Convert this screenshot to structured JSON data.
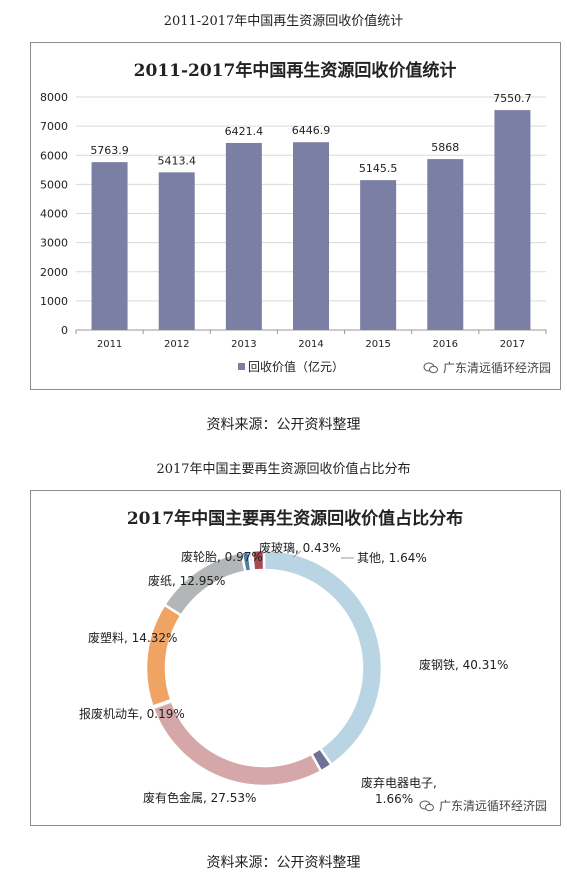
{
  "chart1_caption": "2011-2017年中国再生资源回收价值统计",
  "chart1_source": "资料来源：公开资料整理",
  "chart2_caption": "2017年中国主要再生资源回收价值占比分布",
  "chart2_source": "资料来源：公开资料整理",
  "watermark_text": "广东清远循环经济园",
  "chart_data": [
    {
      "type": "bar",
      "title": "2011-2017年中国再生资源回收价值统计",
      "categories": [
        "2011",
        "2012",
        "2013",
        "2014",
        "2015",
        "2016",
        "2017"
      ],
      "series": [
        {
          "name": "回收价值（亿元）",
          "values": [
            5763.9,
            5413.4,
            6421.4,
            6446.9,
            5145.5,
            5868,
            7550.7
          ]
        }
      ],
      "data_labels": [
        "5763.9",
        "5413.4",
        "6421.4",
        "6446.9",
        "5145.5",
        "5868",
        "7550.7"
      ],
      "ylim": [
        0,
        8000
      ],
      "yticks": [
        "0",
        "1000",
        "2000",
        "3000",
        "4000",
        "5000",
        "6000",
        "7000",
        "8000"
      ],
      "grid": true,
      "legend": "bottom",
      "color": "#7b7fa3"
    },
    {
      "type": "pie",
      "title": "2017年中国主要再生资源回收价值占比分布",
      "slices": [
        {
          "label": "废钢铁, 40.31%",
          "value": 40.31,
          "color": "#b9d5e4"
        },
        {
          "label": "废弃电器电子, 1.66%",
          "value": 1.66,
          "color": "#6f7195"
        },
        {
          "label": "废有色金属, 27.53%",
          "value": 27.53,
          "color": "#d5a7a9"
        },
        {
          "label": "报废机动车, 0.19%",
          "value": 0.19,
          "color": "#9fb0c7"
        },
        {
          "label": "废塑料, 14.32%",
          "value": 14.32,
          "color": "#efa464"
        },
        {
          "label": "废纸, 12.95%",
          "value": 12.95,
          "color": "#b3b6b6"
        },
        {
          "label": "废轮胎, 0.97%",
          "value": 0.97,
          "color": "#4a80a8"
        },
        {
          "label": "废玻璃, 0.43%",
          "value": 0.43,
          "color": "#9ec3d9"
        },
        {
          "label": "其他, 1.64%",
          "value": 1.64,
          "color": "#a84a4f"
        }
      ],
      "legend": "none"
    }
  ]
}
